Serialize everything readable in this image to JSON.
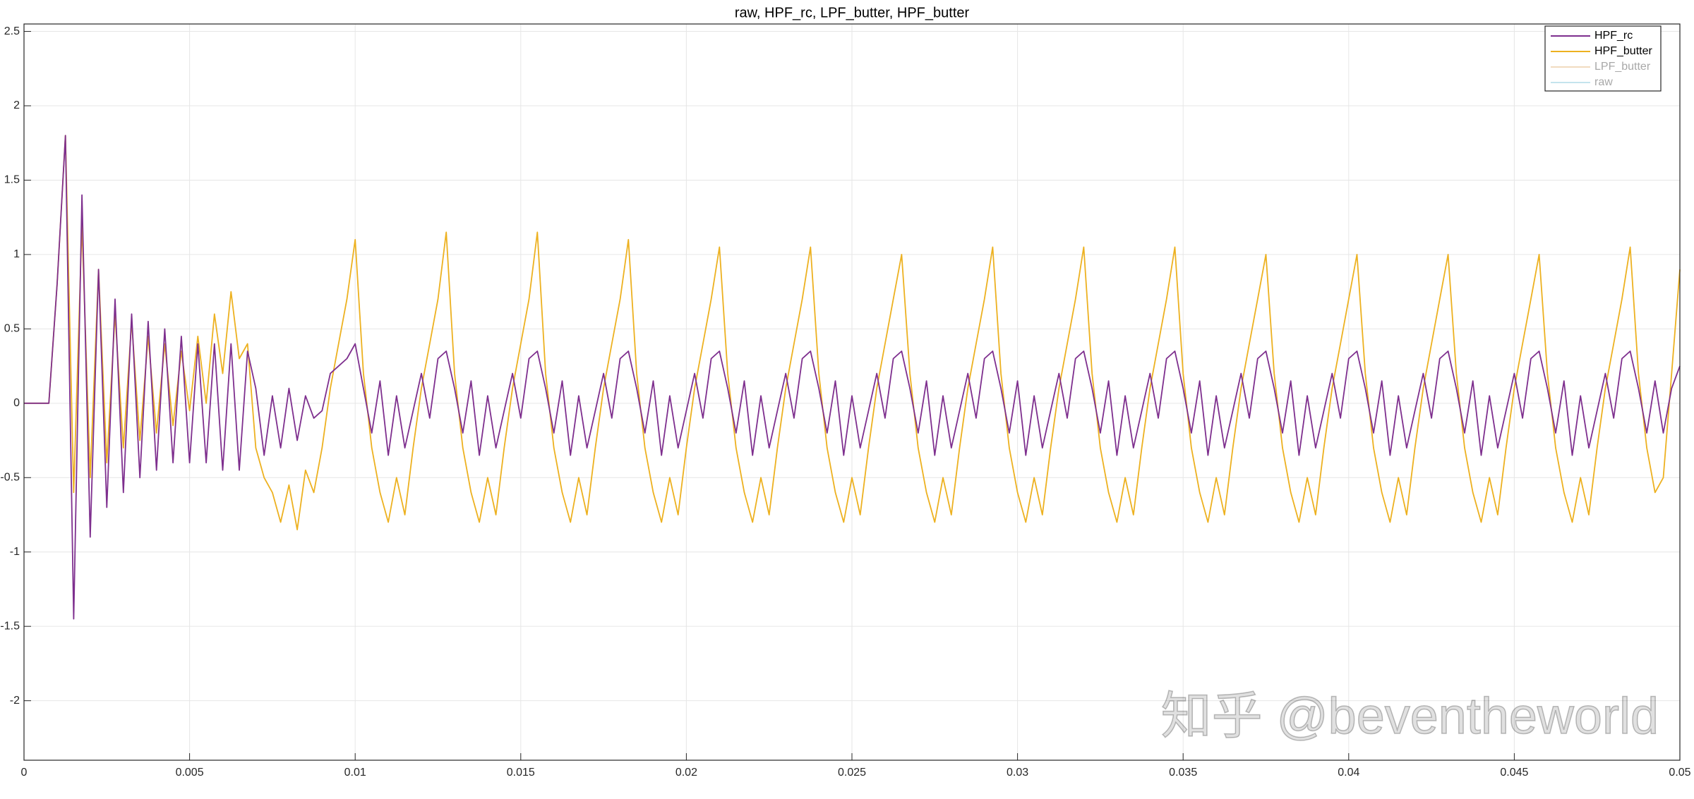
{
  "chart_data": {
    "type": "line",
    "title": "raw, HPF_rc, LPF_butter, HPF_butter",
    "watermark": "知乎 @beventheworld",
    "xlim": [
      0,
      0.05
    ],
    "ylim": [
      -2.4,
      2.55
    ],
    "xticks": [
      0,
      0.005,
      0.01,
      0.015,
      0.02,
      0.025,
      0.03,
      0.035,
      0.04,
      0.045,
      0.05
    ],
    "yticks": [
      -2,
      -1.5,
      -1,
      -0.5,
      0,
      0.5,
      1,
      1.5,
      2,
      2.5
    ],
    "grid": true,
    "legend": "upper right",
    "x": [
      0,
      0.00025,
      0.0005,
      0.00075,
      0.001,
      0.00125,
      0.0015,
      0.00175,
      0.002,
      0.00225,
      0.0025,
      0.00275,
      0.003,
      0.00325,
      0.0035,
      0.00375,
      0.004,
      0.00425,
      0.0045,
      0.00475,
      0.005,
      0.00525,
      0.0055,
      0.00575,
      0.006,
      0.00625,
      0.0065,
      0.00675,
      0.007,
      0.00725,
      0.0075,
      0.00775,
      0.008,
      0.00825,
      0.0085,
      0.00875,
      0.009,
      0.00925,
      0.0095,
      0.00975,
      0.01,
      0.01025,
      0.0105,
      0.01075,
      0.011,
      0.01125,
      0.0115,
      0.01175,
      0.012,
      0.01225,
      0.0125,
      0.01275,
      0.013,
      0.01325,
      0.0135,
      0.01375,
      0.014,
      0.01425,
      0.0145,
      0.01475,
      0.015,
      0.01525,
      0.0155,
      0.01575,
      0.016,
      0.01625,
      0.0165,
      0.01675,
      0.017,
      0.01725,
      0.0175,
      0.01775,
      0.018,
      0.01825,
      0.0185,
      0.01875,
      0.019,
      0.01925,
      0.0195,
      0.01975,
      0.02,
      0.02025,
      0.0205,
      0.02075,
      0.021,
      0.02125,
      0.0215,
      0.02175,
      0.022,
      0.02225,
      0.0225,
      0.02275,
      0.023,
      0.02325,
      0.0235,
      0.02375,
      0.024,
      0.02425,
      0.0245,
      0.02475,
      0.025,
      0.02525,
      0.0255,
      0.02575,
      0.026,
      0.02625,
      0.0265,
      0.02675,
      0.027,
      0.02725,
      0.0275,
      0.02775,
      0.028,
      0.02825,
      0.0285,
      0.02875,
      0.029,
      0.02925,
      0.0295,
      0.02975,
      0.03,
      0.03025,
      0.0305,
      0.03075,
      0.031,
      0.03125,
      0.0315,
      0.03175,
      0.032,
      0.03225,
      0.0325,
      0.03275,
      0.033,
      0.03325,
      0.0335,
      0.03375,
      0.034,
      0.03425,
      0.0345,
      0.03475,
      0.035,
      0.03525,
      0.0355,
      0.03575,
      0.036,
      0.03625,
      0.0365,
      0.03675,
      0.037,
      0.03725,
      0.0375,
      0.03775,
      0.038,
      0.03825,
      0.0385,
      0.03875,
      0.039,
      0.03925,
      0.0395,
      0.03975,
      0.04,
      0.04025,
      0.0405,
      0.04075,
      0.041,
      0.04125,
      0.0415,
      0.04175,
      0.042,
      0.04225,
      0.0425,
      0.04275,
      0.043,
      0.04325,
      0.0435,
      0.04375,
      0.044,
      0.04425,
      0.0445,
      0.04475,
      0.045,
      0.04525,
      0.0455,
      0.04575,
      0.046,
      0.04625,
      0.0465,
      0.04675,
      0.047,
      0.04725,
      0.0475,
      0.04775,
      0.048,
      0.04825,
      0.0485,
      0.04875,
      0.049,
      0.04925,
      0.0495,
      0.04975,
      0.05
    ],
    "series": [
      {
        "name": "HPF_rc",
        "color": "#7e2f8e",
        "visible": true,
        "values": [
          0,
          0,
          0,
          0,
          0.8,
          1.8,
          -1.45,
          1.4,
          -0.9,
          0.9,
          -0.7,
          0.7,
          -0.6,
          0.6,
          -0.5,
          0.55,
          -0.45,
          0.5,
          -0.4,
          0.45,
          -0.4,
          0.4,
          -0.4,
          0.4,
          -0.45,
          0.4,
          -0.45,
          0.35,
          0.1,
          -0.35,
          0.05,
          -0.3,
          0.1,
          -0.25,
          0.05,
          -0.1,
          -0.05,
          0.2,
          0.25,
          0.3,
          0.4,
          0.1,
          -0.2,
          0.15,
          -0.35,
          0.05,
          -0.3,
          -0.05,
          0.2,
          -0.1,
          0.3,
          0.35,
          0.1,
          -0.2,
          0.15,
          -0.35,
          0.05,
          -0.3,
          -0.05,
          0.2,
          -0.1,
          0.3,
          0.35,
          0.1,
          -0.2,
          0.15,
          -0.35,
          0.05,
          -0.3,
          -0.05,
          0.2,
          -0.1,
          0.3,
          0.35,
          0.1,
          -0.2,
          0.15,
          -0.35,
          0.05,
          -0.3,
          -0.05,
          0.2,
          -0.1,
          0.3,
          0.35,
          0.1,
          -0.2,
          0.15,
          -0.35,
          0.05,
          -0.3,
          -0.05,
          0.2,
          -0.1,
          0.3,
          0.35,
          0.1,
          -0.2,
          0.15,
          -0.35,
          0.05,
          -0.3,
          -0.05,
          0.2,
          -0.1,
          0.3,
          0.35,
          0.1,
          -0.2,
          0.15,
          -0.35,
          0.05,
          -0.3,
          -0.05,
          0.2,
          -0.1,
          0.3,
          0.35,
          0.1,
          -0.2,
          0.15,
          -0.35,
          0.05,
          -0.3,
          -0.05,
          0.2,
          -0.1,
          0.3,
          0.35,
          0.1,
          -0.2,
          0.15,
          -0.35,
          0.05,
          -0.3,
          -0.05,
          0.2,
          -0.1,
          0.3,
          0.35,
          0.1,
          -0.2,
          0.15,
          -0.35,
          0.05,
          -0.3,
          -0.05,
          0.2,
          -0.1,
          0.3,
          0.35,
          0.1,
          -0.2,
          0.15,
          -0.35,
          0.05,
          -0.3,
          -0.05,
          0.2,
          -0.1,
          0.3,
          0.35,
          0.1,
          -0.2,
          0.15,
          -0.35,
          0.05,
          -0.3,
          -0.05,
          0.2,
          -0.1,
          0.3,
          0.35,
          0.1,
          -0.2,
          0.15,
          -0.35,
          0.05,
          -0.3,
          -0.05,
          0.2,
          -0.1,
          0.3,
          0.35,
          0.1,
          -0.2,
          0.15,
          -0.35,
          0.05,
          -0.3,
          -0.05,
          0.2,
          -0.1,
          0.3,
          0.35,
          0.1,
          -0.2,
          0.15,
          -0.2,
          0.1,
          0.25
        ]
      },
      {
        "name": "HPF_butter",
        "color": "#edb120",
        "visible": true,
        "values": [
          0,
          0,
          0,
          0,
          0.8,
          1.8,
          -0.6,
          1.2,
          -0.5,
          0.9,
          -0.4,
          0.6,
          -0.3,
          0.55,
          -0.25,
          0.45,
          -0.2,
          0.4,
          -0.15,
          0.35,
          -0.05,
          0.45,
          0,
          0.6,
          0.2,
          0.75,
          0.3,
          0.4,
          -0.3,
          -0.5,
          -0.6,
          -0.8,
          -0.55,
          -0.85,
          -0.45,
          -0.6,
          -0.3,
          0.1,
          0.4,
          0.7,
          1.1,
          0.2,
          -0.3,
          -0.6,
          -0.8,
          -0.5,
          -0.75,
          -0.3,
          0.1,
          0.4,
          0.7,
          1.15,
          0.2,
          -0.3,
          -0.6,
          -0.8,
          -0.5,
          -0.75,
          -0.3,
          0.1,
          0.4,
          0.7,
          1.15,
          0.2,
          -0.3,
          -0.6,
          -0.8,
          -0.5,
          -0.75,
          -0.3,
          0.1,
          0.4,
          0.7,
          1.1,
          0.2,
          -0.3,
          -0.6,
          -0.8,
          -0.5,
          -0.75,
          -0.3,
          0.1,
          0.4,
          0.7,
          1.05,
          0.2,
          -0.3,
          -0.6,
          -0.8,
          -0.5,
          -0.75,
          -0.3,
          0.1,
          0.4,
          0.7,
          1.05,
          0.2,
          -0.3,
          -0.6,
          -0.8,
          -0.5,
          -0.75,
          -0.3,
          0.1,
          0.4,
          0.7,
          1.0,
          0.2,
          -0.3,
          -0.6,
          -0.8,
          -0.5,
          -0.75,
          -0.3,
          0.1,
          0.4,
          0.7,
          1.05,
          0.2,
          -0.3,
          -0.6,
          -0.8,
          -0.5,
          -0.75,
          -0.3,
          0.1,
          0.4,
          0.7,
          1.05,
          0.2,
          -0.3,
          -0.6,
          -0.8,
          -0.5,
          -0.75,
          -0.3,
          0.1,
          0.4,
          0.7,
          1.05,
          0.2,
          -0.3,
          -0.6,
          -0.8,
          -0.5,
          -0.75,
          -0.3,
          0.1,
          0.4,
          0.7,
          1.0,
          0.2,
          -0.3,
          -0.6,
          -0.8,
          -0.5,
          -0.75,
          -0.3,
          0.1,
          0.4,
          0.7,
          1.0,
          0.2,
          -0.3,
          -0.6,
          -0.8,
          -0.5,
          -0.75,
          -0.3,
          0.1,
          0.4,
          0.7,
          1.0,
          0.2,
          -0.3,
          -0.6,
          -0.8,
          -0.5,
          -0.75,
          -0.3,
          0.1,
          0.4,
          0.7,
          1.0,
          0.2,
          -0.3,
          -0.6,
          -0.8,
          -0.5,
          -0.75,
          -0.3,
          0.1,
          0.4,
          0.7,
          1.05,
          0.2,
          -0.3,
          -0.6,
          -0.5,
          0.2,
          0.9
        ]
      },
      {
        "name": "LPF_butter",
        "color": "#e0b070",
        "visible": false,
        "values": [
          null,
          null,
          null,
          null,
          null,
          null,
          null,
          null,
          null,
          null,
          null,
          null,
          null,
          null,
          null,
          null,
          null,
          null,
          null,
          null,
          null,
          null,
          null,
          null,
          null,
          null,
          null,
          null,
          null,
          null,
          null,
          null,
          null,
          null,
          null,
          null,
          null,
          null,
          null,
          null,
          null,
          null,
          null,
          null,
          null,
          null,
          null,
          null,
          null,
          null,
          null,
          null,
          null,
          null,
          null,
          null,
          null,
          null,
          null,
          null,
          null,
          null,
          null,
          null,
          null,
          null,
          null,
          null,
          null,
          null,
          null,
          null,
          null,
          null,
          null,
          null,
          null,
          null,
          null,
          null,
          null,
          null,
          null,
          null,
          null,
          null,
          null,
          null,
          null,
          null,
          null,
          null,
          null,
          null,
          null,
          null,
          null,
          null,
          null,
          null,
          null,
          null,
          null,
          null,
          null,
          null,
          null,
          null,
          null,
          null,
          null,
          null,
          null,
          null,
          null,
          null,
          null,
          null,
          null,
          null,
          null,
          null,
          null,
          null,
          null,
          null,
          null,
          null,
          null,
          null,
          null,
          null,
          null,
          null,
          null,
          null,
          null,
          null,
          null,
          null,
          null,
          null,
          null,
          null,
          null,
          null,
          null,
          null,
          null,
          null,
          null,
          null,
          null,
          null,
          null,
          null,
          null,
          null,
          null,
          null,
          null,
          null,
          null,
          null,
          null,
          null,
          null,
          null,
          null,
          null,
          null,
          null,
          null,
          null,
          null,
          null,
          null,
          null,
          null,
          null,
          null,
          null,
          null,
          null,
          null,
          null,
          null,
          null,
          null,
          null,
          null,
          null,
          null,
          null,
          null,
          null,
          null,
          null,
          null,
          null,
          null
        ]
      },
      {
        "name": "raw",
        "color": "#7cc4d8",
        "visible": false,
        "values": [
          null,
          null,
          null,
          null,
          null,
          null,
          null,
          null,
          null,
          null,
          null,
          null,
          null,
          null,
          null,
          null,
          null,
          null,
          null,
          null,
          null,
          null,
          null,
          null,
          null,
          null,
          null,
          null,
          null,
          null,
          null,
          null,
          null,
          null,
          null,
          null,
          null,
          null,
          null,
          null,
          null,
          null,
          null,
          null,
          null,
          null,
          null,
          null,
          null,
          null,
          null,
          null,
          null,
          null,
          null,
          null,
          null,
          null,
          null,
          null,
          null,
          null,
          null,
          null,
          null,
          null,
          null,
          null,
          null,
          null,
          null,
          null,
          null,
          null,
          null,
          null,
          null,
          null,
          null,
          null,
          null,
          null,
          null,
          null,
          null,
          null,
          null,
          null,
          null,
          null,
          null,
          null,
          null,
          null,
          null,
          null,
          null,
          null,
          null,
          null,
          null,
          null,
          null,
          null,
          null,
          null,
          null,
          null,
          null,
          null,
          null,
          null,
          null,
          null,
          null,
          null,
          null,
          null,
          null,
          null,
          null,
          null,
          null,
          null,
          null,
          null,
          null,
          null,
          null,
          null,
          null,
          null,
          null,
          null,
          null,
          null,
          null,
          null,
          null,
          null,
          null,
          null,
          null,
          null,
          null,
          null,
          null,
          null,
          null,
          null,
          null,
          null,
          null,
          null,
          null,
          null,
          null,
          null,
          null,
          null,
          null,
          null,
          null,
          null,
          null,
          null,
          null,
          null,
          null,
          null,
          null,
          null,
          null,
          null,
          null,
          null,
          null,
          null,
          null,
          null,
          null,
          null,
          null,
          null,
          null,
          null,
          null,
          null,
          null,
          null,
          null,
          null,
          null,
          null,
          null,
          null,
          null,
          null,
          null,
          null,
          null
        ]
      }
    ]
  }
}
